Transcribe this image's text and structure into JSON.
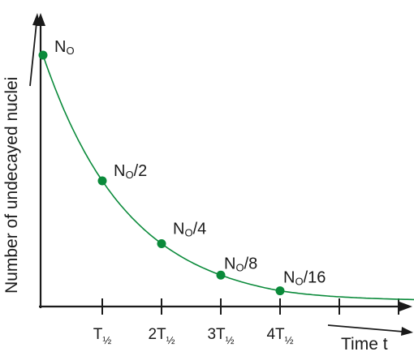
{
  "chart_data": {
    "type": "line",
    "title": "",
    "xlabel": "Time t",
    "ylabel": "Number of undecayed nuclei",
    "xlim": [
      0,
      6.4
    ],
    "ylim": [
      0,
      1.0
    ],
    "x_ticks": [
      {
        "x": 1,
        "base": "T",
        "frac": "1/2"
      },
      {
        "x": 2,
        "base": "2T",
        "frac": "1/2"
      },
      {
        "x": 3,
        "base": "3T",
        "frac": "1/2"
      },
      {
        "x": 4,
        "base": "4T",
        "frac": "1/2"
      },
      {
        "x": 5,
        "base": "",
        "frac": ""
      },
      {
        "x": 6,
        "base": "",
        "frac": ""
      }
    ],
    "series": [
      {
        "color": "#0a8a3a",
        "points": [
          {
            "x": 0,
            "y": 1.0,
            "label_main": "N",
            "label_sub": "O",
            "label_tail": ""
          },
          {
            "x": 1,
            "y": 0.5,
            "label_main": "N",
            "label_sub": "O",
            "label_tail": "/2"
          },
          {
            "x": 2,
            "y": 0.25,
            "label_main": "N",
            "label_sub": "O",
            "label_tail": "/4"
          },
          {
            "x": 3,
            "y": 0.125,
            "label_main": "N",
            "label_sub": "O",
            "label_tail": "/8"
          },
          {
            "x": 4,
            "y": 0.0625,
            "label_main": "N",
            "label_sub": "O",
            "label_tail": "/16"
          }
        ]
      }
    ],
    "curve_asymptote": 0.0
  }
}
